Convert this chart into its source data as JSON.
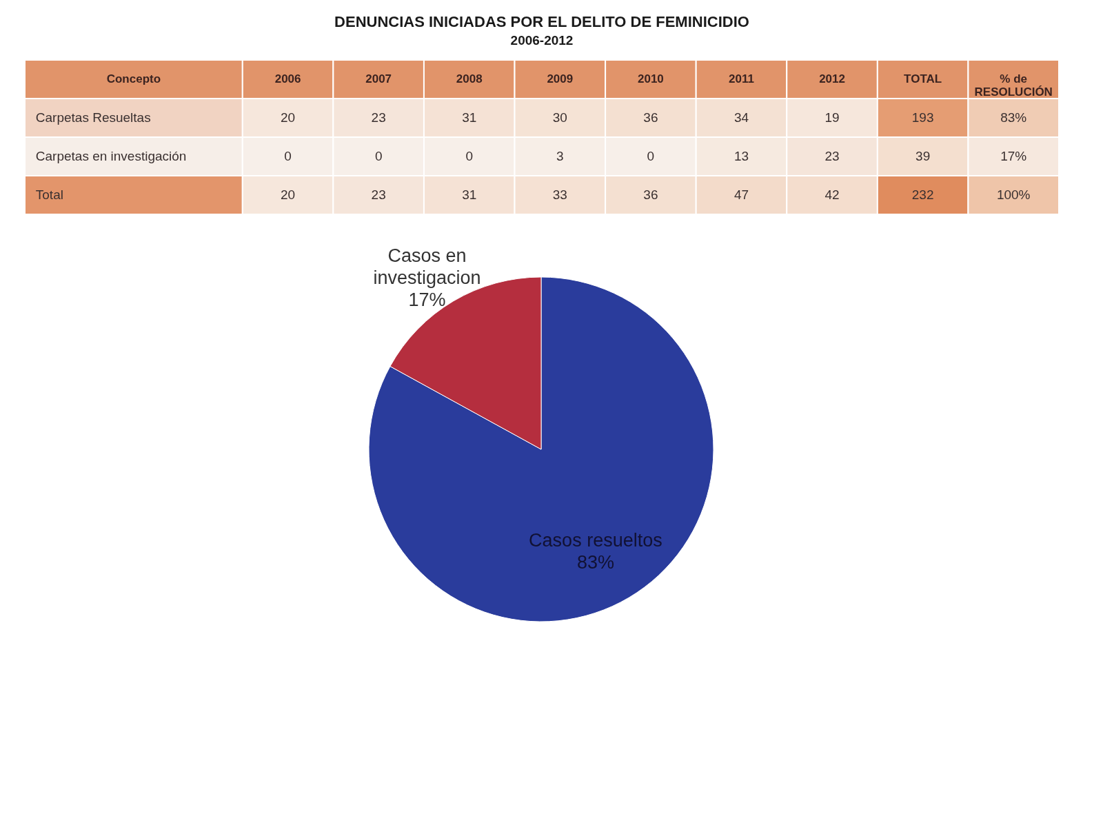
{
  "chart_data": [
    {
      "type": "heatmap",
      "title": "DENUNCIAS INICIADAS POR EL DELITO DE FEMINICIDIO",
      "subtitle": "2006-2012",
      "ylabel": "Concepto",
      "categories": [
        "2006",
        "2007",
        "2008",
        "2009",
        "2010",
        "2011",
        "2012",
        "TOTAL",
        "% de RESOLUCIÓN"
      ],
      "y_categories": [
        "Carpetas Resueltas",
        "Carpetas en investigación",
        "Total"
      ],
      "cells": [
        [
          20,
          23,
          31,
          30,
          36,
          34,
          19,
          193,
          83
        ],
        [
          0,
          0,
          0,
          3,
          0,
          13,
          23,
          39,
          17
        ],
        [
          20,
          23,
          31,
          33,
          36,
          47,
          42,
          232,
          100
        ]
      ],
      "cell_labels": [
        [
          "20",
          "23",
          "31",
          "30",
          "36",
          "34",
          "19",
          "193",
          "83%"
        ],
        [
          "0",
          "0",
          "0",
          "3",
          "0",
          "13",
          "23",
          "39",
          "17%"
        ],
        [
          "20",
          "23",
          "31",
          "33",
          "36",
          "47",
          "42",
          "232",
          "100%"
        ]
      ]
    },
    {
      "type": "pie",
      "categories": [
        "Casos resueltos",
        "Casos en investigacion"
      ],
      "values": [
        83,
        17
      ],
      "colors": [
        "#2a3c9c",
        "#b52e3e"
      ],
      "value_labels": [
        "83%",
        "17%"
      ]
    }
  ]
}
